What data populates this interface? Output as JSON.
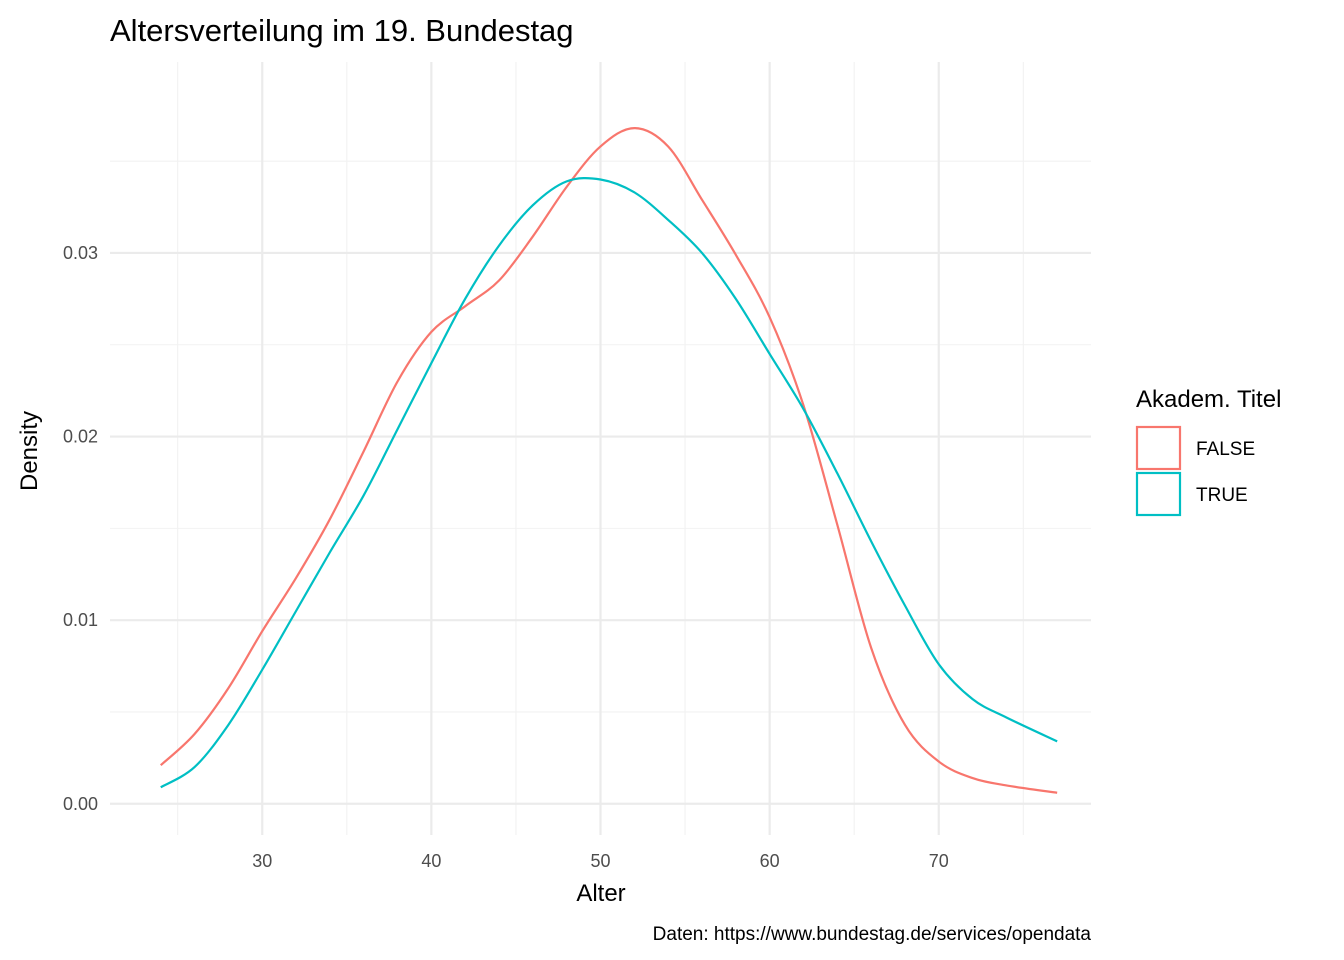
{
  "chart_data": {
    "type": "line",
    "title": "Altersverteilung im 19. Bundestag",
    "xlabel": "Alter",
    "ylabel": "Density",
    "caption": "Daten: https://www.bundestag.de/services/opendata",
    "xlim": [
      21,
      79
    ],
    "ylim": [
      -0.0017,
      0.0404
    ],
    "x_ticks": [
      30,
      40,
      50,
      60,
      70
    ],
    "x_tick_labels": [
      "30",
      "40",
      "50",
      "60",
      "70"
    ],
    "x_minor_ticks": [
      25,
      35,
      45,
      55,
      65,
      75
    ],
    "y_ticks": [
      0,
      0.01,
      0.02,
      0.03
    ],
    "y_tick_labels": [
      "0.00",
      "0.01",
      "0.02",
      "0.03"
    ],
    "y_minor_ticks": [
      0.005,
      0.015,
      0.025,
      0.035
    ],
    "grid": true,
    "legend": {
      "title": "Akadem. Titel",
      "position": "right"
    },
    "series": [
      {
        "name": "FALSE",
        "color": "#F8766D",
        "x": [
          24,
          26,
          28,
          30,
          32,
          34,
          36,
          38,
          40,
          42,
          44,
          46,
          48,
          50,
          52,
          54,
          56,
          58,
          60,
          62,
          64,
          66,
          68,
          70,
          72,
          74,
          77
        ],
        "y": [
          0.0021,
          0.0038,
          0.0063,
          0.0094,
          0.0123,
          0.0155,
          0.0192,
          0.023,
          0.0257,
          0.0271,
          0.0285,
          0.0309,
          0.0336,
          0.0358,
          0.0368,
          0.0358,
          0.0329,
          0.0299,
          0.0265,
          0.0217,
          0.0152,
          0.0085,
          0.0043,
          0.0023,
          0.0014,
          0.001,
          0.0006
        ]
      },
      {
        "name": "TRUE",
        "color": "#00BFC4",
        "x": [
          24,
          26,
          28,
          30,
          32,
          34,
          36,
          38,
          40,
          42,
          44,
          46,
          48,
          50,
          52,
          54,
          56,
          58,
          60,
          62,
          64,
          66,
          68,
          70,
          72,
          74,
          77
        ],
        "y": [
          0.0009,
          0.002,
          0.0043,
          0.0073,
          0.0105,
          0.0137,
          0.0168,
          0.0204,
          0.024,
          0.0275,
          0.0304,
          0.0326,
          0.0339,
          0.034,
          0.0333,
          0.0318,
          0.03,
          0.0275,
          0.0245,
          0.0215,
          0.018,
          0.0143,
          0.0108,
          0.0076,
          0.0057,
          0.0047,
          0.0034
        ]
      }
    ]
  }
}
